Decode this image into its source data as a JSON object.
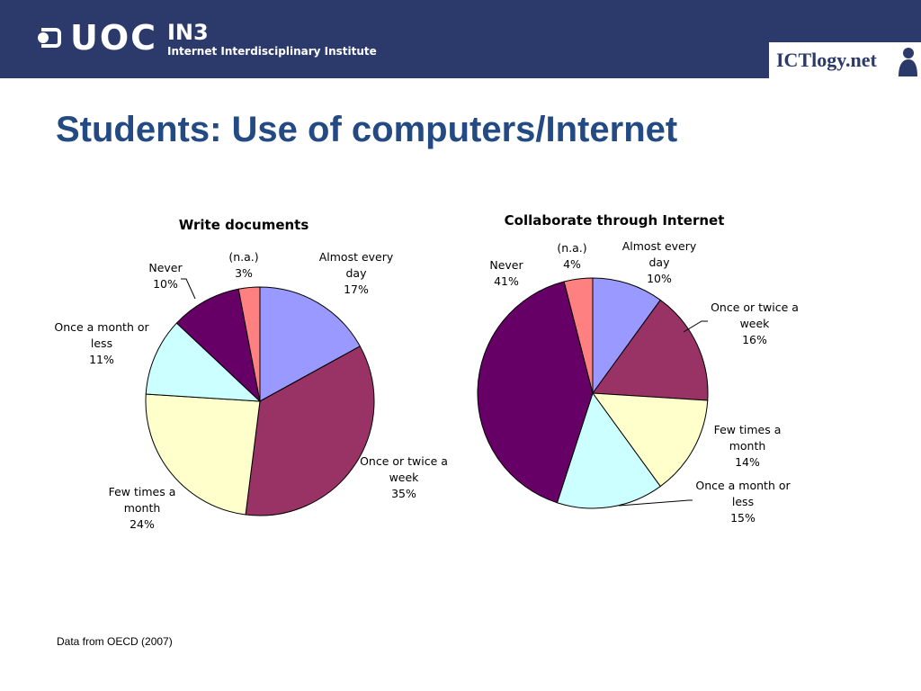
{
  "header": {
    "logo_uoc": "UOC",
    "logo_in3_title": "IN3",
    "logo_in3_subtitle": "Internet Interdisciplinary Institute",
    "brand_ictlogy": "ICTlogy.net"
  },
  "page": {
    "title": "Students: Use of computers/Internet",
    "source_note": "Data from OECD (2007)"
  },
  "colors": {
    "header_bg": "#2c3a6b",
    "title": "#234a82",
    "slice_almost_every_day": "#9999ff",
    "slice_once_or_twice_week": "#993366",
    "slice_few_times_month": "#ffffcc",
    "slice_once_month_or_less": "#ccffff",
    "slice_never": "#660066",
    "slice_na": "#ff8080"
  },
  "chart_data": [
    {
      "type": "pie",
      "title": "Write documents",
      "slices": [
        {
          "label": "Almost every day",
          "label_lines": [
            "Almost every",
            "day"
          ],
          "value": 17,
          "value_text": "17%",
          "color": "#9999ff"
        },
        {
          "label": "Once or twice a week",
          "label_lines": [
            "Once or twice a",
            "week"
          ],
          "value": 35,
          "value_text": "35%",
          "color": "#993366"
        },
        {
          "label": "Few times a month",
          "label_lines": [
            "Few times a",
            "month"
          ],
          "value": 24,
          "value_text": "24%",
          "color": "#ffffcc"
        },
        {
          "label": "Once a month or less",
          "label_lines": [
            "Once a month or",
            "less"
          ],
          "value": 11,
          "value_text": "11%",
          "color": "#ccffff"
        },
        {
          "label": "Never",
          "label_lines": [
            "Never"
          ],
          "value": 10,
          "value_text": "10%",
          "color": "#660066"
        },
        {
          "label": "(n.a.)",
          "label_lines": [
            "(n.a.)"
          ],
          "value": 3,
          "value_text": "3%",
          "color": "#ff8080"
        }
      ]
    },
    {
      "type": "pie",
      "title": "Collaborate through Internet",
      "slices": [
        {
          "label": "Almost every day",
          "label_lines": [
            "Almost every",
            "day"
          ],
          "value": 10,
          "value_text": "10%",
          "color": "#9999ff"
        },
        {
          "label": "Once or twice a week",
          "label_lines": [
            "Once or twice a",
            "week"
          ],
          "value": 16,
          "value_text": "16%",
          "color": "#993366"
        },
        {
          "label": "Few times a month",
          "label_lines": [
            "Few times a",
            "month"
          ],
          "value": 14,
          "value_text": "14%",
          "color": "#ffffcc"
        },
        {
          "label": "Once a month or less",
          "label_lines": [
            "Once a month or",
            "less"
          ],
          "value": 15,
          "value_text": "15%",
          "color": "#ccffff"
        },
        {
          "label": "Never",
          "label_lines": [
            "Never"
          ],
          "value": 41,
          "value_text": "41%",
          "color": "#660066"
        },
        {
          "label": "(n.a.)",
          "label_lines": [
            "(n.a.)"
          ],
          "value": 4,
          "value_text": "4%",
          "color": "#ff8080"
        }
      ]
    }
  ]
}
